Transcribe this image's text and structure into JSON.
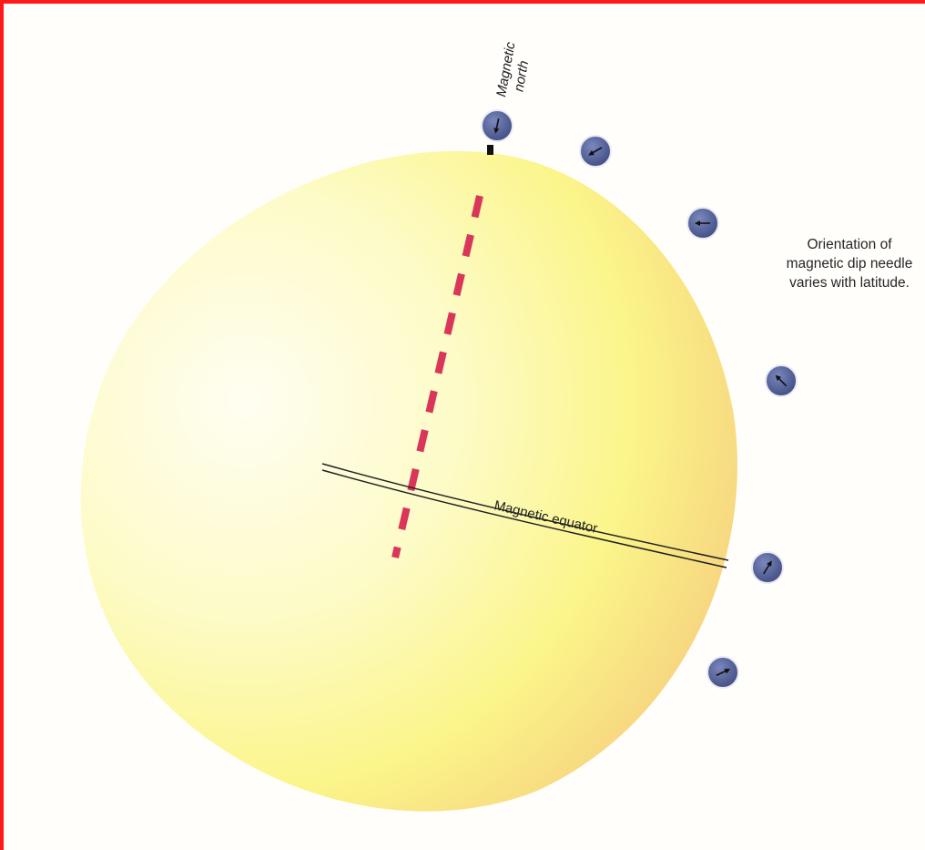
{
  "labels": {
    "magnetic_north": [
      "Magnetic",
      "north"
    ],
    "magnetic_equator": "Magnetic equator",
    "caption": "Orientation of magnetic dip needle varies with latitude."
  },
  "colors": {
    "frame": "#ff1a1a",
    "axis_dash": "#d9365a",
    "compass_fill": "#55639a",
    "globe_light": "#fffef0",
    "globe_mid": "#fbf78f",
    "globe_warm": "#f2b274"
  },
  "icons": [
    "dip-needle-compass-icon"
  ]
}
